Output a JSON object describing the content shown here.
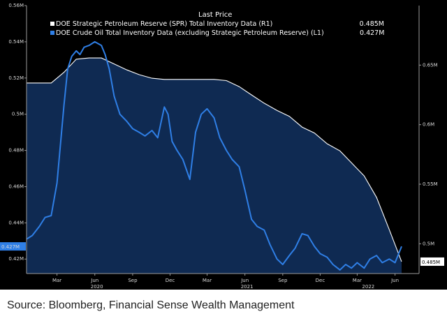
{
  "source": "Source: Bloomberg, Financial Sense Wealth Management",
  "chart_data": {
    "type": "line",
    "legend": {
      "title": "Last Price",
      "placement": "top",
      "entries": [
        {
          "label": "DOE Strategic Petroleum Reserve (SPR) Total Inventory Data  (R1)",
          "value": "0.485M",
          "color": "#ffffff"
        },
        {
          "label": "DOE Crude Oil Total Inventory Data (excluding Strategic Petroleum Reserve)  (L1)",
          "value": "0.427M",
          "color": "#2f7fe6"
        }
      ]
    },
    "x_axis": {
      "months": [
        "Mar",
        "Jun",
        "Sep",
        "Dec",
        "Mar",
        "Jun",
        "Sep",
        "Dec",
        "Mar",
        "Jun"
      ],
      "years": [
        "2020",
        "2021",
        "2022"
      ],
      "range": [
        "2020-01",
        "2022-07"
      ]
    },
    "y_left": {
      "ticks": [
        "0.56M",
        "0.54M",
        "0.52M",
        "0.5M",
        "0.48M",
        "0.46M",
        "0.44M",
        "0.42M"
      ],
      "range": [
        0.412,
        0.56
      ],
      "last_value_label": "0.427M"
    },
    "y_right": {
      "ticks": [
        "0.65M",
        "0.6M",
        "0.55M",
        "0.5M"
      ],
      "range": [
        0.475,
        0.7
      ],
      "last_value_label": "0.485M"
    },
    "grid": false,
    "background": "#000000",
    "series": [
      {
        "axis": "right",
        "color": "#ffffff",
        "fill": "#0f2a52",
        "x": [
          "2020-01",
          "2020-03-01",
          "2020-04",
          "2020-05",
          "2020-06",
          "2020-07",
          "2020-08",
          "2020-09",
          "2020-10",
          "2020-11",
          "2020-12",
          "2021-01",
          "2021-02",
          "2021-03",
          "2021-04",
          "2021-05",
          "2021-06",
          "2021-07",
          "2021-08",
          "2021-09",
          "2021-10",
          "2021-11",
          "2021-12",
          "2022-01",
          "2022-02",
          "2022-03",
          "2022-04",
          "2022-05",
          "2022-06",
          "2022-07"
        ],
        "values": [
          0.635,
          0.635,
          0.644,
          0.655,
          0.656,
          0.656,
          0.651,
          0.646,
          0.642,
          0.639,
          0.638,
          0.638,
          0.638,
          0.638,
          0.638,
          0.637,
          0.632,
          0.625,
          0.618,
          0.612,
          0.607,
          0.598,
          0.593,
          0.584,
          0.578,
          0.568,
          0.557,
          0.539,
          0.512,
          0.485
        ]
      },
      {
        "axis": "left",
        "color": "#2f7fe6",
        "x": [
          "2020-01",
          "2020-01-15",
          "2020-02",
          "2020-02-15",
          "2020-03",
          "2020-03-15",
          "2020-04",
          "2020-04-10",
          "2020-04-20",
          "2020-05",
          "2020-05-10",
          "2020-05-20",
          "2020-06",
          "2020-06-15",
          "2020-07",
          "2020-07-10",
          "2020-07-20",
          "2020-08",
          "2020-08-15",
          "2020-09",
          "2020-09-15",
          "2020-10",
          "2020-10-15",
          "2020-11",
          "2020-11-15",
          "2020-12",
          "2020-12-10",
          "2020-12-20",
          "2021-01",
          "2021-01-15",
          "2021-02",
          "2021-02-15",
          "2021-03",
          "2021-03-15",
          "2021-04",
          "2021-04-15",
          "2021-05",
          "2021-05-15",
          "2021-06",
          "2021-06-15",
          "2021-07",
          "2021-07-15",
          "2021-08",
          "2021-08-15",
          "2021-09",
          "2021-09-15",
          "2021-10",
          "2021-10-15",
          "2021-11",
          "2021-11-15",
          "2021-12",
          "2021-12-15",
          "2022-01",
          "2022-01-15",
          "2022-02",
          "2022-02-15",
          "2022-03",
          "2022-03-15",
          "2022-04",
          "2022-04-15",
          "2022-05",
          "2022-05-15",
          "2022-06",
          "2022-06-15",
          "2022-07"
        ],
        "values": [
          0.431,
          0.433,
          0.438,
          0.443,
          0.444,
          0.462,
          0.505,
          0.525,
          0.532,
          0.535,
          0.533,
          0.537,
          0.538,
          0.54,
          0.538,
          0.533,
          0.525,
          0.51,
          0.5,
          0.496,
          0.492,
          0.49,
          0.488,
          0.491,
          0.487,
          0.504,
          0.5,
          0.485,
          0.48,
          0.475,
          0.464,
          0.49,
          0.5,
          0.503,
          0.498,
          0.487,
          0.48,
          0.475,
          0.471,
          0.458,
          0.442,
          0.438,
          0.436,
          0.428,
          0.42,
          0.417,
          0.422,
          0.426,
          0.434,
          0.433,
          0.427,
          0.423,
          0.421,
          0.417,
          0.414,
          0.417,
          0.415,
          0.418,
          0.415,
          0.42,
          0.422,
          0.418,
          0.42,
          0.418,
          0.427
        ]
      }
    ]
  }
}
